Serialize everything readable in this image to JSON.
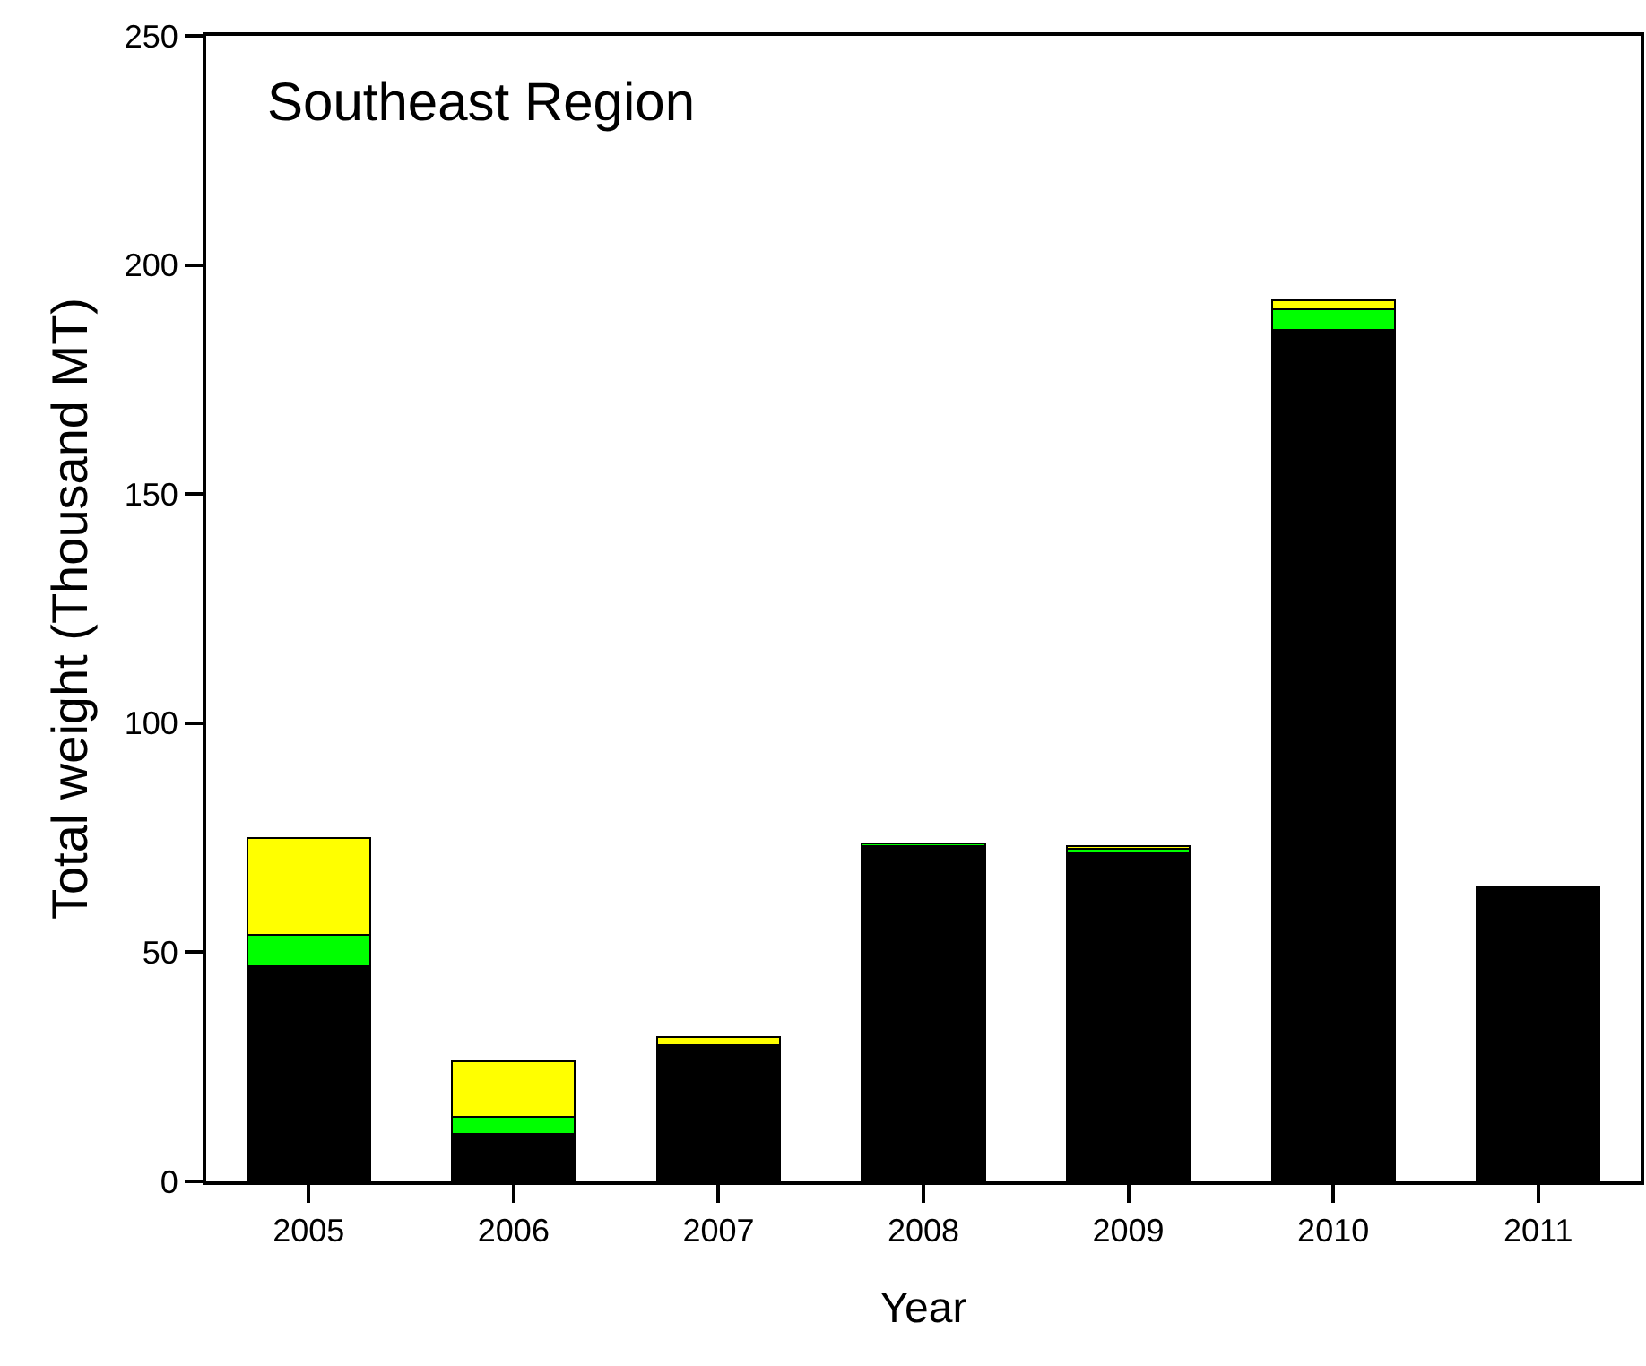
{
  "chart_data": {
    "type": "bar",
    "stacked": true,
    "xlabel": "Year",
    "ylabel": "Total weight (Thousand MT)",
    "annotations": [
      "Southeast Region"
    ],
    "categories": [
      "2005",
      "2006",
      "2007",
      "2008",
      "2009",
      "2010",
      "2011"
    ],
    "series": [
      {
        "color": "#000000",
        "values": [
          47,
          10.3,
          29.6,
          73.2,
          71.6,
          185.8,
          64.4
        ]
      },
      {
        "color": "#00ff00",
        "values": [
          6.8,
          3.8,
          0.2,
          0.5,
          1.0,
          4.6,
          null
        ]
      },
      {
        "color": "#ffff00",
        "values": [
          21.2,
          12.1,
          1.6,
          null,
          0.5,
          1.8,
          null
        ]
      }
    ],
    "ylim": [
      0,
      250
    ],
    "yticks": [
      0,
      50,
      100,
      150,
      200,
      250
    ],
    "grid": false
  }
}
